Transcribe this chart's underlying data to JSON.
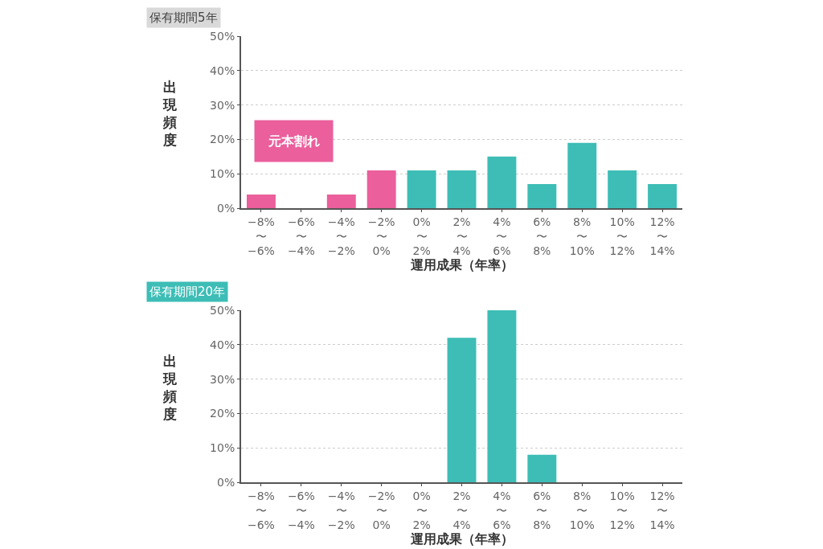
{
  "chart_data": [
    {
      "type": "bar",
      "title": "保有期間5年",
      "xlabel": "運用成果（年率）",
      "ylabel": "出現頻度",
      "categories": [
        "−8%\n〜\n−6%",
        "−6%\n〜\n−4%",
        "−4%\n〜\n−2%",
        "−2%\n〜\n0%",
        "0%\n〜\n2%",
        "2%\n〜\n4%",
        "4%\n〜\n6%",
        "6%\n〜\n8%",
        "8%\n〜\n10%",
        "10%\n〜\n12%",
        "12%\n〜\n14%"
      ],
      "values": [
        4,
        0,
        4,
        11,
        11,
        11,
        15,
        7,
        19,
        11,
        7
      ],
      "colors": [
        "#ea5f9c",
        "#ea5f9c",
        "#ea5f9c",
        "#ea5f9c",
        "#3dbdb6",
        "#3dbdb6",
        "#3dbdb6",
        "#3dbdb6",
        "#3dbdb6",
        "#3dbdb6",
        "#3dbdb6"
      ],
      "ylim": [
        0,
        50
      ],
      "yticks": [
        {
          "value": 0,
          "label": "0%"
        },
        {
          "value": 10,
          "label": "10%"
        },
        {
          "value": 20,
          "label": "20%"
        },
        {
          "value": 30,
          "label": "30%"
        },
        {
          "value": 40,
          "label": "40%"
        },
        {
          "value": 50,
          "label": "50%"
        }
      ],
      "grid": "y",
      "annotations": [
        "元本割れ"
      ]
    },
    {
      "type": "bar",
      "title": "保有期間20年",
      "xlabel": "運用成果（年率）",
      "ylabel": "出現頻度",
      "categories": [
        "−8%\n〜\n−6%",
        "−6%\n〜\n−4%",
        "−4%\n〜\n−2%",
        "−2%\n〜\n0%",
        "0%\n〜\n2%",
        "2%\n〜\n4%",
        "4%\n〜\n6%",
        "6%\n〜\n8%",
        "8%\n〜\n10%",
        "10%\n〜\n12%",
        "12%\n〜\n14%"
      ],
      "values": [
        0,
        0,
        0,
        0,
        0,
        42,
        50,
        8,
        0,
        0,
        0
      ],
      "colors": [
        "#3dbdb6",
        "#3dbdb6",
        "#3dbdb6",
        "#3dbdb6",
        "#3dbdb6",
        "#3dbdb6",
        "#3dbdb6",
        "#3dbdb6",
        "#3dbdb6",
        "#3dbdb6",
        "#3dbdb6"
      ],
      "ylim": [
        0,
        50
      ],
      "yticks": [
        {
          "value": 0,
          "label": "0%"
        },
        {
          "value": 10,
          "label": "10%"
        },
        {
          "value": 20,
          "label": "20%"
        },
        {
          "value": 30,
          "label": "30%"
        },
        {
          "value": 40,
          "label": "40%"
        },
        {
          "value": 50,
          "label": "50%"
        }
      ],
      "grid": "y"
    }
  ]
}
